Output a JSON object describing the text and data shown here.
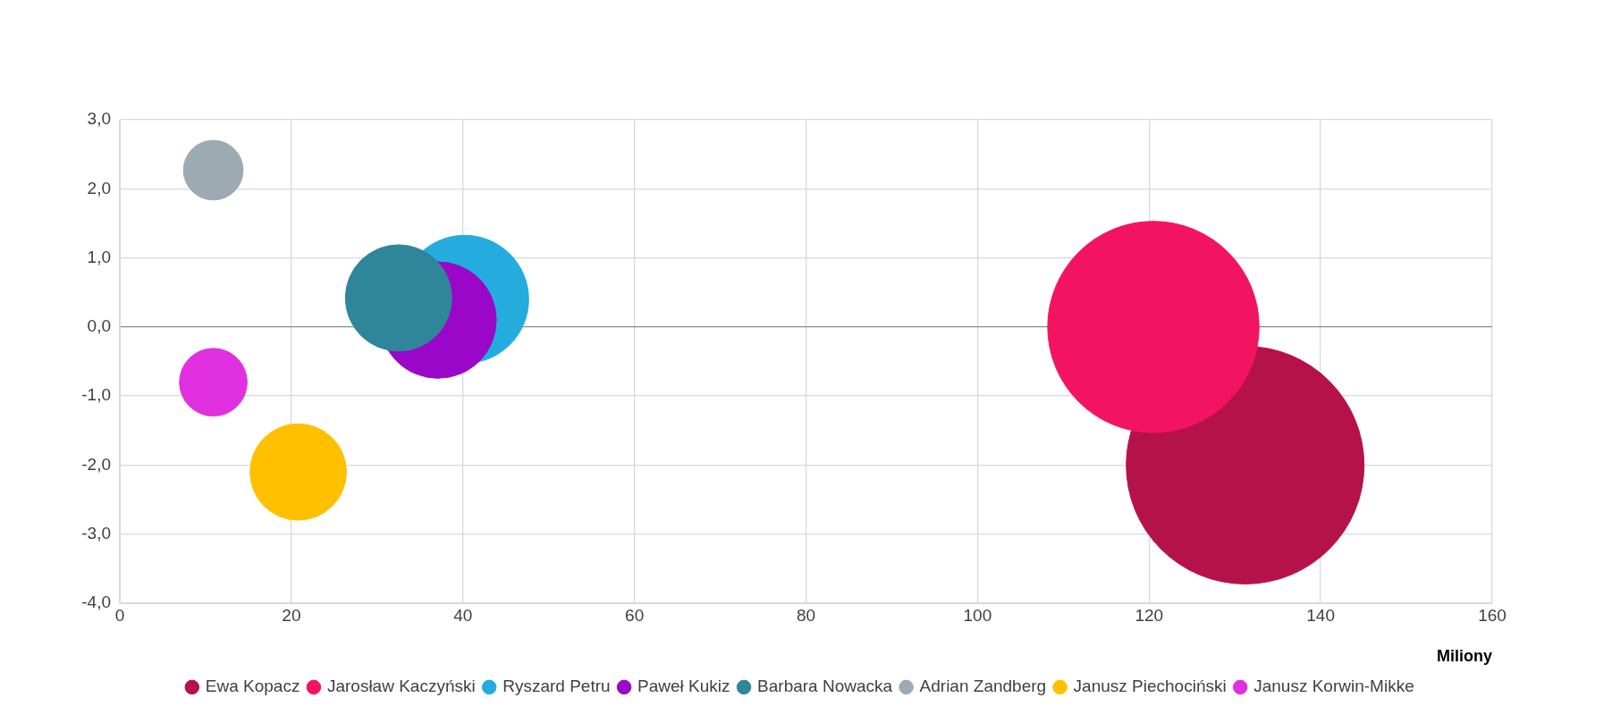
{
  "chart_data": {
    "type": "bubble",
    "xlabel": "Miliony",
    "xlim": [
      0,
      160
    ],
    "xticks": [
      0,
      20,
      40,
      60,
      80,
      100,
      120,
      140,
      160
    ],
    "ylim": [
      -4,
      3
    ],
    "yticks": [
      {
        "value": -4,
        "label": "-4,0"
      },
      {
        "value": -3,
        "label": "-3,0"
      },
      {
        "value": -2,
        "label": "-2,0"
      },
      {
        "value": -1,
        "label": "-1,0"
      },
      {
        "value": 0,
        "label": "0,0"
      },
      {
        "value": 1,
        "label": "1,0"
      },
      {
        "value": 2,
        "label": "2,0"
      },
      {
        "value": 3,
        "label": "3,0"
      }
    ],
    "grid": true,
    "legend": "bottom",
    "marker": "circle",
    "series": [
      {
        "name": "Ewa Kopacz",
        "color": "#b5124a",
        "x": [
          131.2
        ],
        "values": [
          -2.0
        ],
        "sizes": [
          1
        ]
      },
      {
        "name": "Jarosław Kaczyński",
        "color": "#f21460",
        "x": [
          120.5
        ],
        "values": [
          0.0
        ],
        "sizes": [
          0.79
        ]
      },
      {
        "name": "Ryszard Petru",
        "color": "#24acdf",
        "x": [
          40.2
        ],
        "values": [
          0.4
        ],
        "sizes": [
          0.29
        ]
      },
      {
        "name": "Paweł Kukiz",
        "color": "#9b07c8",
        "x": [
          37.1
        ],
        "values": [
          0.1
        ],
        "sizes": [
          0.24
        ]
      },
      {
        "name": "Barbara Nowacka",
        "color": "#2f869a",
        "x": [
          32.5
        ],
        "values": [
          0.42
        ],
        "sizes": [
          0.2
        ]
      },
      {
        "name": "Adrian Zandberg",
        "color": "#9eaab2",
        "x": [
          10.9
        ],
        "values": [
          2.27
        ],
        "sizes": [
          0.063
        ]
      },
      {
        "name": "Janusz Piechociński",
        "color": "#ffc000",
        "x": [
          20.8
        ],
        "values": [
          -2.1
        ],
        "sizes": [
          0.164
        ]
      },
      {
        "name": "Janusz Korwin-Mikke",
        "color": "#e030e0",
        "x": [
          10.9
        ],
        "values": [
          -0.8
        ],
        "sizes": [
          0.081
        ]
      }
    ]
  }
}
